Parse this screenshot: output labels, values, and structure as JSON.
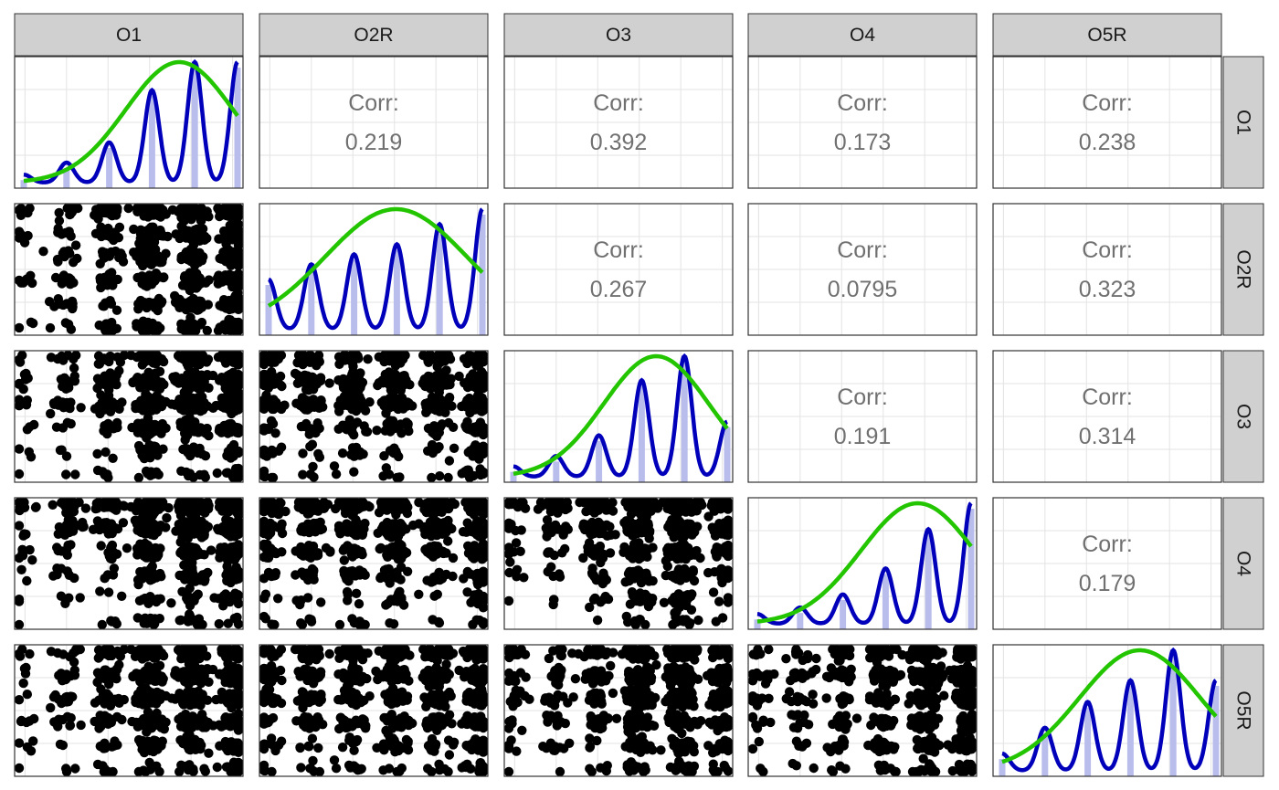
{
  "chart_data": {
    "type": "scatter",
    "title": "",
    "variables": [
      "O1",
      "O2R",
      "O3",
      "O4",
      "O5R"
    ],
    "variable_levels": [
      1,
      2,
      3,
      4,
      5,
      6
    ],
    "upper_label": "Corr:",
    "correlations": [
      {
        "row": "O1",
        "col": "O2R",
        "value": "0.219"
      },
      {
        "row": "O1",
        "col": "O3",
        "value": "0.392"
      },
      {
        "row": "O1",
        "col": "O4",
        "value": "0.173"
      },
      {
        "row": "O1",
        "col": "O5R",
        "value": "0.238"
      },
      {
        "row": "O2R",
        "col": "O3",
        "value": "0.267"
      },
      {
        "row": "O2R",
        "col": "O4",
        "value": "0.0795"
      },
      {
        "row": "O2R",
        "col": "O5R",
        "value": "0.323"
      },
      {
        "row": "O3",
        "col": "O4",
        "value": "0.191"
      },
      {
        "row": "O3",
        "col": "O5R",
        "value": "0.314"
      },
      {
        "row": "O4",
        "col": "O5R",
        "value": "0.179"
      }
    ],
    "distributions": [
      {
        "name": "O1",
        "proportions": [
          0.02,
          0.05,
          0.1,
          0.23,
          0.3,
          0.3
        ]
      },
      {
        "name": "O2R",
        "proportions": [
          0.1,
          0.13,
          0.15,
          0.17,
          0.21,
          0.24
        ]
      },
      {
        "name": "O3",
        "proportions": [
          0.03,
          0.06,
          0.12,
          0.28,
          0.35,
          0.16
        ]
      },
      {
        "name": "O4",
        "proportions": [
          0.03,
          0.05,
          0.09,
          0.17,
          0.29,
          0.37
        ]
      },
      {
        "name": "O5R",
        "proportions": [
          0.04,
          0.1,
          0.16,
          0.21,
          0.28,
          0.21
        ]
      }
    ],
    "scatter_points_per_panel": 1000,
    "colors": {
      "density_line": "#0000bb",
      "normal_curve": "#22c500",
      "bars": "#b9bdec",
      "points": "#000000",
      "strip_fill": "#d0d0d0",
      "corr_text": "#707070",
      "panel_border": "#333333",
      "grid": "#e3e3e3"
    },
    "grid": true,
    "legend": "none"
  }
}
